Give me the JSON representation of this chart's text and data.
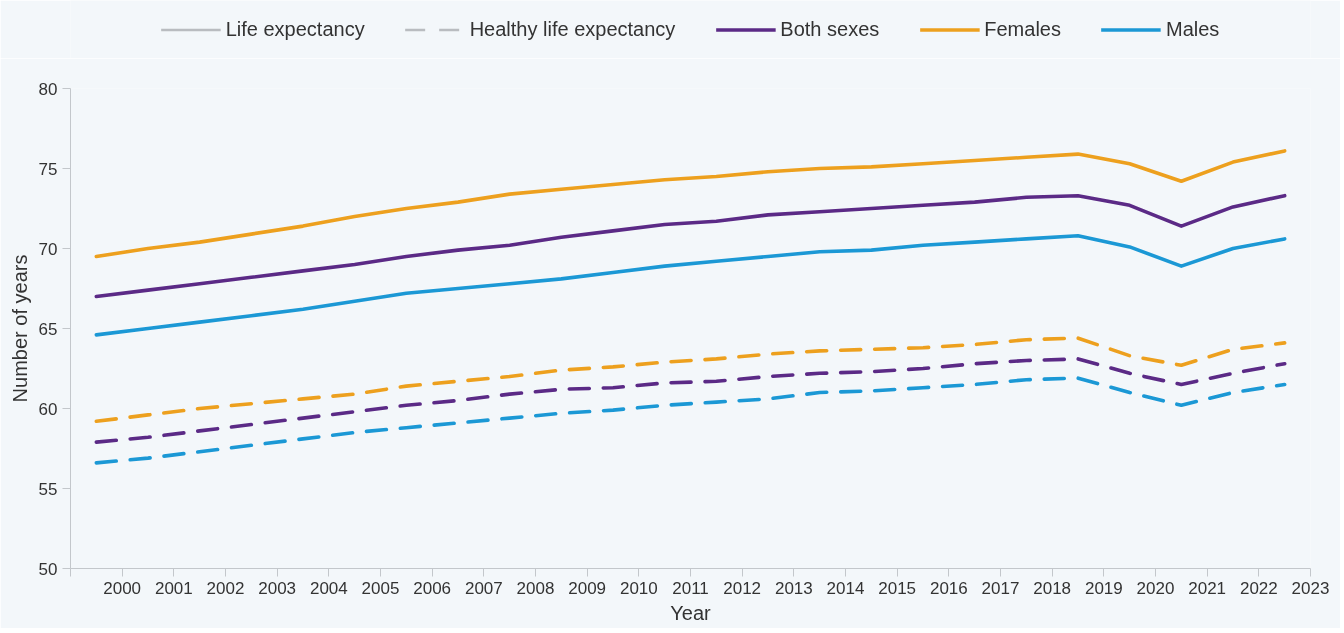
{
  "chart_data": {
    "type": "line",
    "xlabel": "Year",
    "ylabel": "Number of years",
    "annotations": [
      "Life expectancy",
      "Healthy life expectancy"
    ],
    "x": [
      2000,
      2001,
      2002,
      2003,
      2004,
      2005,
      2006,
      2007,
      2008,
      2009,
      2010,
      2011,
      2012,
      2013,
      2014,
      2015,
      2016,
      2017,
      2018,
      2019,
      2020,
      2021,
      2022,
      2023
    ],
    "xlim": [
      1999.5,
      2023.5
    ],
    "xticks": [
      {
        "value": 1999.5,
        "label": null
      },
      {
        "value": 2000.5,
        "label": "2000"
      },
      {
        "value": 2001.5,
        "label": "2001"
      },
      {
        "value": 2002.5,
        "label": "2002"
      },
      {
        "value": 2003.5,
        "label": "2003"
      },
      {
        "value": 2004.5,
        "label": "2004"
      },
      {
        "value": 2005.5,
        "label": "2005"
      },
      {
        "value": 2006.5,
        "label": "2006"
      },
      {
        "value": 2007.5,
        "label": "2007"
      },
      {
        "value": 2008.5,
        "label": "2008"
      },
      {
        "value": 2009.5,
        "label": "2009"
      },
      {
        "value": 2010.5,
        "label": "2010"
      },
      {
        "value": 2011.5,
        "label": "2011"
      },
      {
        "value": 2012.5,
        "label": "2012"
      },
      {
        "value": 2013.5,
        "label": "2013"
      },
      {
        "value": 2014.5,
        "label": "2014"
      },
      {
        "value": 2015.5,
        "label": "2015"
      },
      {
        "value": 2016.5,
        "label": "2016"
      },
      {
        "value": 2017.5,
        "label": "2017"
      },
      {
        "value": 2018.5,
        "label": "2018"
      },
      {
        "value": 2019.5,
        "label": "2019"
      },
      {
        "value": 2020.5,
        "label": "2020"
      },
      {
        "value": 2021.5,
        "label": "2021"
      },
      {
        "value": 2022.5,
        "label": "2022"
      },
      {
        "value": 2023.5,
        "label": "2023"
      }
    ],
    "ylim": [
      50,
      80
    ],
    "yticks": [
      50,
      55,
      60,
      65,
      70,
      75,
      80
    ],
    "grid": false,
    "legend": "top",
    "marker": "none",
    "series": [
      {
        "name": "Both sexes",
        "color": "#5b2a86",
        "line_style": "solid",
        "values": [
          67.0,
          67.4,
          67.8,
          68.2,
          68.6,
          69.0,
          69.5,
          69.9,
          70.2,
          70.7,
          71.1,
          71.5,
          71.7,
          72.1,
          72.3,
          72.5,
          72.7,
          72.9,
          73.2,
          73.3,
          72.7,
          71.4,
          72.6,
          73.3
        ]
      },
      {
        "name": "Females",
        "color": "#eda01e",
        "line_style": "solid",
        "values": [
          69.5,
          70.0,
          70.4,
          70.9,
          71.4,
          72.0,
          72.5,
          72.9,
          73.4,
          73.7,
          74.0,
          74.3,
          74.5,
          74.8,
          75.0,
          75.1,
          75.3,
          75.5,
          75.7,
          75.9,
          75.3,
          74.2,
          75.4,
          76.1
        ]
      },
      {
        "name": "Males",
        "color": "#1b98d5",
        "line_style": "solid",
        "values": [
          64.6,
          65.0,
          65.4,
          65.8,
          66.2,
          66.7,
          67.2,
          67.5,
          67.8,
          68.1,
          68.5,
          68.9,
          69.2,
          69.5,
          69.8,
          69.9,
          70.2,
          70.4,
          70.6,
          70.8,
          70.1,
          68.9,
          70.0,
          70.6
        ]
      },
      {
        "color": "#5b2a86",
        "line_style": "dashed",
        "values": [
          57.9,
          58.2,
          58.6,
          59.0,
          59.4,
          59.8,
          60.2,
          60.5,
          60.9,
          61.2,
          61.3,
          61.6,
          61.7,
          62.0,
          62.2,
          62.3,
          62.5,
          62.8,
          63.0,
          63.1,
          62.2,
          61.5,
          62.2,
          62.8
        ]
      },
      {
        "color": "#eda01e",
        "line_style": "dashed",
        "values": [
          59.2,
          59.6,
          60.0,
          60.3,
          60.6,
          60.9,
          61.4,
          61.7,
          62.0,
          62.4,
          62.6,
          62.9,
          63.1,
          63.4,
          63.6,
          63.7,
          63.8,
          64.0,
          64.3,
          64.4,
          63.3,
          62.7,
          63.7,
          64.1
        ]
      },
      {
        "color": "#1b98d5",
        "line_style": "dashed",
        "values": [
          56.6,
          56.9,
          57.3,
          57.7,
          58.1,
          58.5,
          58.8,
          59.1,
          59.4,
          59.7,
          59.9,
          60.2,
          60.4,
          60.6,
          61.0,
          61.1,
          61.3,
          61.5,
          61.8,
          61.9,
          61.0,
          60.2,
          61.0,
          61.5
        ]
      }
    ]
  }
}
